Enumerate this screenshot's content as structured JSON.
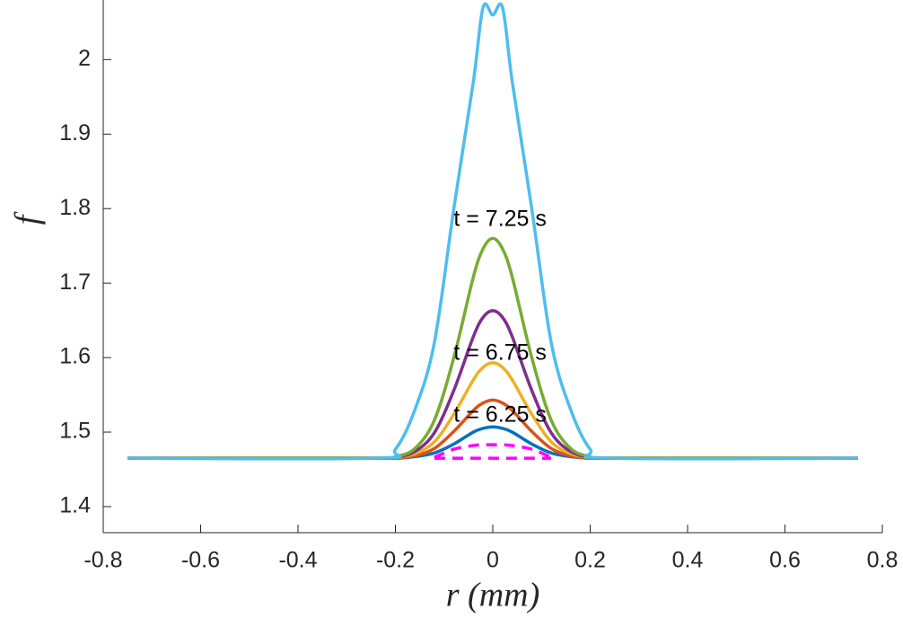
{
  "chart_data": {
    "type": "line",
    "xlabel": "r (mm)",
    "ylabel": "f",
    "x": [
      -0.75,
      -0.24,
      -0.2,
      -0.16,
      -0.12,
      -0.08,
      -0.04,
      -0.02,
      0,
      0.02,
      0.04,
      0.08,
      0.12,
      0.16,
      0.2,
      0.24,
      0.75
    ],
    "series": [
      {
        "color": "#FF00FF",
        "dashed": true,
        "values": [
          null,
          null,
          null,
          null,
          1.465,
          1.465,
          1.465,
          1.465,
          1.465,
          1.465,
          1.465,
          1.465,
          1.465,
          null,
          null,
          null,
          null
        ]
      },
      {
        "color": "#FF00FF",
        "dashed": true,
        "values": [
          null,
          null,
          null,
          null,
          1.466,
          1.477,
          1.482,
          1.483,
          1.483,
          1.483,
          1.482,
          1.477,
          1.466,
          null,
          null,
          null,
          null
        ]
      },
      {
        "color": "#0072BD",
        "values": [
          1.465,
          1.465,
          1.465,
          1.467,
          1.472,
          1.484,
          1.5,
          1.505,
          1.507,
          1.505,
          1.5,
          1.484,
          1.472,
          1.467,
          1.465,
          1.465,
          1.465
        ]
      },
      {
        "color": "#D95319",
        "values": [
          1.465,
          1.465,
          1.465,
          1.468,
          1.478,
          1.501,
          1.529,
          1.539,
          1.543,
          1.539,
          1.529,
          1.501,
          1.478,
          1.468,
          1.465,
          1.465,
          1.465
        ]
      },
      {
        "color": "#EDB120",
        "values": [
          1.465,
          1.465,
          1.466,
          1.471,
          1.487,
          1.524,
          1.57,
          1.587,
          1.593,
          1.587,
          1.57,
          1.524,
          1.487,
          1.471,
          1.466,
          1.465,
          1.465
        ]
      },
      {
        "color": "#7E2F8E",
        "values": [
          1.465,
          1.465,
          1.466,
          1.474,
          1.499,
          1.556,
          1.628,
          1.654,
          1.663,
          1.654,
          1.628,
          1.556,
          1.499,
          1.474,
          1.466,
          1.465,
          1.465
        ]
      },
      {
        "color": "#77AC30",
        "values": [
          1.465,
          1.465,
          1.467,
          1.478,
          1.516,
          1.6,
          1.708,
          1.746,
          1.76,
          1.746,
          1.708,
          1.6,
          1.516,
          1.478,
          1.467,
          1.465,
          1.465
        ]
      },
      {
        "color": "#4DBEEE",
        "values": [
          1.465,
          1.465,
          1.477,
          1.53,
          1.62,
          1.8,
          1.97,
          2.07,
          2.06,
          2.07,
          1.97,
          1.8,
          1.62,
          1.53,
          1.477,
          1.465,
          1.465
        ]
      }
    ],
    "annotations": [
      {
        "text": "t = 7.25 s",
        "x": 0.015,
        "y": 1.785
      },
      {
        "text": "t = 6.75 s",
        "x": 0.015,
        "y": 1.605
      },
      {
        "text": "t = 6.25 s",
        "x": 0.015,
        "y": 1.522
      }
    ],
    "xlim": [
      -0.8,
      0.8
    ],
    "xticks": [
      -0.8,
      -0.6,
      -0.4,
      -0.2,
      0,
      0.2,
      0.4,
      0.6,
      0.8
    ],
    "ylim": [
      1.365,
      2.08
    ],
    "yticks": [
      1.4,
      1.5,
      1.6,
      1.7,
      1.8,
      1.9,
      2
    ],
    "grid": false
  }
}
